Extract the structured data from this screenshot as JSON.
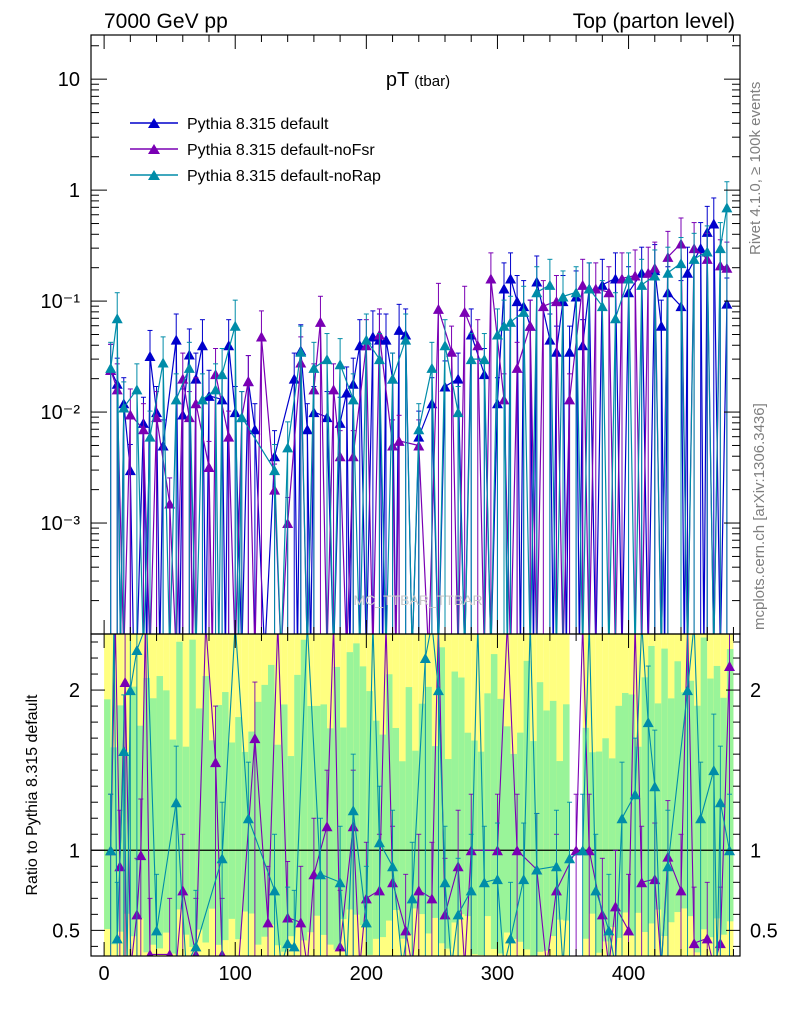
{
  "header": {
    "left": "7000 GeV pp",
    "right": "Top (parton level)"
  },
  "side": {
    "rivet": "Rivet 4.1.0, ≥ 100k events",
    "mcplots": "mcplots.cern.ch [arXiv:1306.3436]"
  },
  "watermark": "MC_TTBAR_TTBAR",
  "chart_data": [
    {
      "type": "line",
      "title": "pT",
      "title_sub": "(tbar)",
      "xlabel": "",
      "ylabel": "",
      "yscale": "log",
      "xlim": [
        -10,
        485
      ],
      "ylim": [
        0.0001,
        25
      ],
      "y_ticks": [
        {
          "value": 10,
          "label": "10"
        },
        {
          "value": 1,
          "label": "1"
        },
        {
          "value": 0.1,
          "label": "10⁻¹"
        },
        {
          "value": 0.01,
          "label": "10⁻²"
        },
        {
          "value": 0.001,
          "label": "10⁻³"
        }
      ],
      "legend": [
        "Pythia 8.315 default",
        "Pythia 8.315 default-noFsr",
        "Pythia 8.315 default-noRap"
      ],
      "series": [
        {
          "name": "Pythia 8.315 default",
          "color": "#0000cc",
          "points": [
            [
              5,
              0.024
            ],
            [
              10,
              0.018
            ],
            [
              15,
              0.012
            ],
            [
              20,
              0.003
            ],
            [
              25,
              0
            ],
            [
              30,
              0.008
            ],
            [
              35,
              0.032
            ],
            [
              40,
              0.01
            ],
            [
              45,
              0.005
            ],
            [
              55,
              0.045
            ],
            [
              60,
              0.0095
            ],
            [
              65,
              0.033
            ],
            [
              70,
              0.02
            ],
            [
              75,
              0.04
            ],
            [
              80,
              0.014
            ],
            [
              90,
              0.013
            ],
            [
              95,
              0.04
            ],
            [
              100,
              0.01
            ],
            [
              110,
              0.019
            ],
            [
              115,
              0.007
            ],
            [
              130,
              0.004
            ],
            [
              145,
              0.02
            ],
            [
              150,
              0.036
            ],
            [
              155,
              0.007
            ],
            [
              160,
              0.01
            ],
            [
              170,
              0.009
            ],
            [
              180,
              0.008
            ],
            [
              185,
              0.015
            ],
            [
              190,
              0.018
            ],
            [
              195,
              0.04
            ],
            [
              205,
              0.048
            ],
            [
              210,
              0.045
            ],
            [
              215,
              0.045
            ],
            [
              220,
              0.02
            ],
            [
              225,
              0.055
            ],
            [
              230,
              0.05
            ],
            [
              240,
              0.006
            ],
            [
              250,
              0.012
            ],
            [
              260,
              0.017
            ],
            [
              270,
              0.02
            ],
            [
              280,
              0.05
            ],
            [
              290,
              0.022
            ],
            [
              300,
              0.012
            ],
            [
              305,
              0.13
            ],
            [
              310,
              0.16
            ],
            [
              315,
              0.1
            ],
            [
              320,
              0.09
            ],
            [
              325,
              0.06
            ],
            [
              330,
              0.15
            ],
            [
              340,
              0.045
            ],
            [
              345,
              0.035
            ],
            [
              350,
              0.1
            ],
            [
              355,
              0.035
            ],
            [
              360,
              0.11
            ],
            [
              365,
              0.04
            ],
            [
              370,
              0.13
            ],
            [
              380,
              0.14
            ],
            [
              390,
              0.16
            ],
            [
              400,
              0.12
            ],
            [
              410,
              0.18
            ],
            [
              420,
              0.19
            ],
            [
              425,
              0.06
            ],
            [
              430,
              0.12
            ],
            [
              440,
              0.09
            ],
            [
              445,
              0.18
            ],
            [
              455,
              0.3
            ],
            [
              460,
              0.42
            ],
            [
              465,
              0.5
            ],
            [
              475,
              0.095
            ]
          ]
        },
        {
          "name": "Pythia 8.315 default-noFsr",
          "color": "#7a00b4",
          "points": [
            [
              5,
              0.024
            ],
            [
              10,
              0.016
            ],
            [
              20,
              0.0095
            ],
            [
              30,
              0.007
            ],
            [
              40,
              0.009
            ],
            [
              50,
              0.0015
            ],
            [
              60,
              0.02
            ],
            [
              65,
              0.009
            ],
            [
              70,
              0.012
            ],
            [
              80,
              0.0032
            ],
            [
              85,
              0.022
            ],
            [
              95,
              0.006
            ],
            [
              105,
              0.009
            ],
            [
              110,
              0.019
            ],
            [
              120,
              0.048
            ],
            [
              130,
              0.002
            ],
            [
              140,
              0.001
            ],
            [
              150,
              0.028
            ],
            [
              160,
              0.016
            ],
            [
              165,
              0.065
            ],
            [
              175,
              0.016
            ],
            [
              180,
              0.004
            ],
            [
              190,
              0.004
            ],
            [
              200,
              0.04
            ],
            [
              210,
              0.05
            ],
            [
              220,
              0.005
            ],
            [
              225,
              0.0055
            ],
            [
              240,
              0.005
            ],
            [
              255,
              0.085
            ],
            [
              265,
              0.035
            ],
            [
              275,
              0.08
            ],
            [
              285,
              0.04
            ],
            [
              295,
              0.16
            ],
            [
              305,
              0.013
            ],
            [
              315,
              0.025
            ],
            [
              325,
              0.06
            ],
            [
              335,
              0.09
            ],
            [
              345,
              0.1
            ],
            [
              355,
              0.013
            ],
            [
              365,
              0.14
            ],
            [
              375,
              0.13
            ],
            [
              385,
              0.12
            ],
            [
              395,
              0.16
            ],
            [
              405,
              0.17
            ],
            [
              415,
              0.18
            ],
            [
              420,
              0.2
            ],
            [
              430,
              0.25
            ],
            [
              440,
              0.33
            ],
            [
              450,
              0.3
            ],
            [
              460,
              0.24
            ],
            [
              470,
              0.21
            ],
            [
              475,
              0.2
            ]
          ]
        },
        {
          "name": "Pythia 8.315 default-noRap",
          "color": "#008ca8",
          "points": [
            [
              5,
              0.025
            ],
            [
              10,
              0.07
            ],
            [
              15,
              0.011
            ],
            [
              25,
              0.016
            ],
            [
              35,
              0.006
            ],
            [
              45,
              0.028
            ],
            [
              55,
              0.013
            ],
            [
              65,
              0.025
            ],
            [
              75,
              0.013
            ],
            [
              85,
              0.016
            ],
            [
              90,
              0.022
            ],
            [
              100,
              0.06
            ],
            [
              105,
              0.009
            ],
            [
              130,
              0.003
            ],
            [
              140,
              0.0048
            ],
            [
              150,
              0.035
            ],
            [
              160,
              0.025
            ],
            [
              170,
              0.03
            ],
            [
              180,
              0.027
            ],
            [
              190,
              0.013
            ],
            [
              200,
              0.045
            ],
            [
              210,
              0.03
            ],
            [
              220,
              0.02
            ],
            [
              230,
              0.045
            ],
            [
              240,
              0.007
            ],
            [
              250,
              0.025
            ],
            [
              260,
              0.04
            ],
            [
              270,
              0.01
            ],
            [
              280,
              0.03
            ],
            [
              290,
              0.03
            ],
            [
              300,
              0.05
            ],
            [
              305,
              0.06
            ],
            [
              310,
              0.065
            ],
            [
              320,
              0.08
            ],
            [
              330,
              0.12
            ],
            [
              340,
              0.14
            ],
            [
              350,
              0.11
            ],
            [
              360,
              0.12
            ],
            [
              370,
              0.13
            ],
            [
              380,
              0.09
            ],
            [
              390,
              0.07
            ],
            [
              400,
              0.16
            ],
            [
              410,
              0.14
            ],
            [
              420,
              0.17
            ],
            [
              430,
              0.18
            ],
            [
              440,
              0.22
            ],
            [
              450,
              0.24
            ],
            [
              460,
              0.28
            ],
            [
              470,
              0.3
            ],
            [
              475,
              0.7
            ]
          ]
        }
      ]
    },
    {
      "type": "line",
      "title": "",
      "xlabel": "",
      "ylabel": "Ratio to Pythia 8.315 default",
      "xlim": [
        -10,
        485
      ],
      "ylim": [
        0.34,
        2.35
      ],
      "x_ticks": [
        0,
        100,
        200,
        300,
        400
      ],
      "y_ticks": [
        0.5,
        1,
        2
      ],
      "reference_line": 1,
      "band_colors": {
        "outer": "#ffff80",
        "inner": "#99f499"
      },
      "series": [
        {
          "name": "Pythia 8.315 default-noFsr",
          "color": "#7a00b4",
          "points": [
            [
              5,
              1.0
            ],
            [
              12,
              0.9
            ],
            [
              16,
              2.05
            ],
            [
              25,
              0.6
            ],
            [
              28,
              0.97
            ],
            [
              35,
              0.35
            ],
            [
              50,
              0.35
            ],
            [
              60,
              0.75
            ],
            [
              70,
              0.35
            ],
            [
              85,
              1.55
            ],
            [
              90,
              0.35
            ],
            [
              115,
              1.7
            ],
            [
              125,
              0.55
            ],
            [
              140,
              0.58
            ],
            [
              150,
              0.55
            ],
            [
              160,
              0.85
            ],
            [
              170,
              1.15
            ],
            [
              180,
              0.4
            ],
            [
              190,
              1.15
            ],
            [
              200,
              0.7
            ],
            [
              210,
              0.75
            ],
            [
              220,
              0.8
            ],
            [
              230,
              0.5
            ],
            [
              240,
              0.75
            ],
            [
              250,
              0.7
            ],
            [
              260,
              0.6
            ],
            [
              270,
              0.9
            ],
            [
              280,
              1.0
            ],
            [
              300,
              1.0
            ],
            [
              315,
              1.0
            ],
            [
              330,
              0.88
            ],
            [
              345,
              0.75
            ],
            [
              360,
              1.0
            ],
            [
              370,
              1.0
            ],
            [
              380,
              0.6
            ],
            [
              390,
              0.65
            ],
            [
              400,
              0.5
            ],
            [
              410,
              0.8
            ],
            [
              420,
              0.82
            ],
            [
              430,
              0.96
            ],
            [
              440,
              0.75
            ],
            [
              450,
              0.42
            ],
            [
              460,
              0.45
            ],
            [
              470,
              0.42
            ],
            [
              477,
              2.15
            ]
          ]
        },
        {
          "name": "Pythia 8.315 default-noRap",
          "color": "#008ca8",
          "points": [
            [
              5,
              1.0
            ],
            [
              10,
              0.45
            ],
            [
              15,
              1.62
            ],
            [
              20,
              2.0
            ],
            [
              25,
              2.25
            ],
            [
              40,
              0.5
            ],
            [
              55,
              1.3
            ],
            [
              70,
              0.4
            ],
            [
              90,
              0.95
            ],
            [
              110,
              1.2
            ],
            [
              130,
              0.75
            ],
            [
              140,
              0.42
            ],
            [
              145,
              0.4
            ],
            [
              165,
              0.85
            ],
            [
              180,
              0.8
            ],
            [
              190,
              1.25
            ],
            [
              200,
              0.55
            ],
            [
              210,
              1.05
            ],
            [
              220,
              0.9
            ],
            [
              235,
              0.7
            ],
            [
              245,
              2.2
            ],
            [
              255,
              2.0
            ],
            [
              260,
              0.8
            ],
            [
              270,
              0.6
            ],
            [
              280,
              0.75
            ],
            [
              290,
              0.8
            ],
            [
              300,
              0.82
            ],
            [
              310,
              0.45
            ],
            [
              320,
              0.82
            ],
            [
              330,
              0.88
            ],
            [
              345,
              0.9
            ],
            [
              355,
              0.95
            ],
            [
              365,
              1.0
            ],
            [
              375,
              0.75
            ],
            [
              385,
              0.5
            ],
            [
              395,
              1.2
            ],
            [
              405,
              1.35
            ],
            [
              415,
              1.8
            ],
            [
              420,
              1.4
            ],
            [
              430,
              0.9
            ],
            [
              445,
              2.0
            ],
            [
              455,
              1.2
            ],
            [
              465,
              1.5
            ],
            [
              470,
              1.3
            ],
            [
              477,
              1.0
            ]
          ]
        }
      ]
    }
  ]
}
